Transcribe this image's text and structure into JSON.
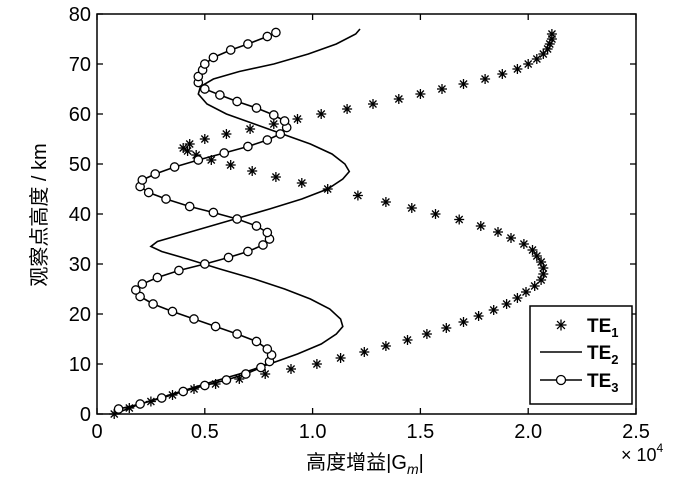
{
  "chart_data": {
    "type": "line",
    "title": "",
    "xlabel": "高度增益|G",
    "xlabel_sub": "m",
    "xlabel_end": "|",
    "ylabel": "观察点高度 / km",
    "x_exponent_label": "× 10",
    "x_exponent_power": "4",
    "xlim": [
      0,
      2.5
    ],
    "ylim": [
      0,
      80
    ],
    "x_ticks": [
      "0",
      "0.5",
      "1.0",
      "1.5",
      "2.0",
      "2.5"
    ],
    "y_ticks": [
      "0",
      "10",
      "20",
      "30",
      "40",
      "50",
      "60",
      "70",
      "80"
    ],
    "grid": false,
    "legend_position": "bottom-right",
    "colors": {
      "axis": "#000000",
      "series": "#000000"
    },
    "series": [
      {
        "name": "TE",
        "name_sub": "1",
        "marker": "asterisk",
        "points": [
          [
            0.08,
            0
          ],
          [
            0.15,
            1.2
          ],
          [
            0.25,
            2.5
          ],
          [
            0.35,
            3.8
          ],
          [
            0.45,
            5
          ],
          [
            0.55,
            6
          ],
          [
            0.66,
            7
          ],
          [
            0.78,
            8
          ],
          [
            0.9,
            9
          ],
          [
            1.02,
            10
          ],
          [
            1.13,
            11.2
          ],
          [
            1.24,
            12.4
          ],
          [
            1.34,
            13.6
          ],
          [
            1.44,
            14.8
          ],
          [
            1.53,
            16
          ],
          [
            1.62,
            17.2
          ],
          [
            1.7,
            18.4
          ],
          [
            1.77,
            19.6
          ],
          [
            1.84,
            20.8
          ],
          [
            1.9,
            22
          ],
          [
            1.95,
            23.2
          ],
          [
            1.99,
            24.4
          ],
          [
            2.03,
            25.6
          ],
          [
            2.06,
            26.8
          ],
          [
            2.07,
            28
          ],
          [
            2.07,
            29.2
          ],
          [
            2.06,
            30.4
          ],
          [
            2.04,
            31.6
          ],
          [
            2.02,
            32.8
          ],
          [
            1.98,
            34
          ],
          [
            1.92,
            35.2
          ],
          [
            1.86,
            36.4
          ],
          [
            1.78,
            37.6
          ],
          [
            1.68,
            38.9
          ],
          [
            1.57,
            40
          ],
          [
            1.46,
            41.2
          ],
          [
            1.34,
            42.4
          ],
          [
            1.21,
            43.7
          ],
          [
            1.07,
            45
          ],
          [
            0.95,
            46.2
          ],
          [
            0.83,
            47.4
          ],
          [
            0.72,
            48.6
          ],
          [
            0.62,
            49.8
          ],
          [
            0.53,
            50.8
          ],
          [
            0.46,
            51.8
          ],
          [
            0.42,
            52.6
          ],
          [
            0.4,
            53.2
          ],
          [
            0.43,
            54
          ],
          [
            0.5,
            55
          ],
          [
            0.6,
            56
          ],
          [
            0.71,
            57
          ],
          [
            0.82,
            58
          ],
          [
            0.93,
            59
          ],
          [
            1.04,
            60
          ],
          [
            1.16,
            61
          ],
          [
            1.28,
            62
          ],
          [
            1.4,
            63
          ],
          [
            1.5,
            64
          ],
          [
            1.6,
            65
          ],
          [
            1.7,
            66
          ],
          [
            1.8,
            67
          ],
          [
            1.88,
            68
          ],
          [
            1.95,
            69
          ],
          [
            2.0,
            70
          ],
          [
            2.04,
            71
          ],
          [
            2.07,
            72
          ],
          [
            2.09,
            73
          ],
          [
            2.1,
            74
          ],
          [
            2.11,
            75
          ],
          [
            2.11,
            76
          ]
        ]
      },
      {
        "name": "TE",
        "name_sub": "2",
        "marker": "none",
        "points": [
          [
            0.08,
            0
          ],
          [
            0.2,
            2
          ],
          [
            0.35,
            4
          ],
          [
            0.5,
            6
          ],
          [
            0.66,
            8
          ],
          [
            0.8,
            10
          ],
          [
            0.93,
            12
          ],
          [
            1.04,
            14
          ],
          [
            1.11,
            16
          ],
          [
            1.14,
            17.5
          ],
          [
            1.13,
            19
          ],
          [
            1.08,
            21
          ],
          [
            0.99,
            23
          ],
          [
            0.87,
            25
          ],
          [
            0.73,
            27
          ],
          [
            0.57,
            29
          ],
          [
            0.42,
            31
          ],
          [
            0.3,
            32.5
          ],
          [
            0.25,
            33.5
          ],
          [
            0.28,
            34.5
          ],
          [
            0.36,
            35.5
          ],
          [
            0.48,
            37
          ],
          [
            0.64,
            39
          ],
          [
            0.8,
            41
          ],
          [
            0.95,
            43
          ],
          [
            1.07,
            45
          ],
          [
            1.14,
            47
          ],
          [
            1.17,
            48.5
          ],
          [
            1.15,
            50
          ],
          [
            1.09,
            52
          ],
          [
            0.99,
            54
          ],
          [
            0.86,
            56
          ],
          [
            0.73,
            58
          ],
          [
            0.6,
            60
          ],
          [
            0.51,
            62
          ],
          [
            0.47,
            64
          ],
          [
            0.48,
            65.5
          ],
          [
            0.54,
            67
          ],
          [
            0.66,
            68.5
          ],
          [
            0.82,
            70
          ],
          [
            0.98,
            72
          ],
          [
            1.11,
            74
          ],
          [
            1.2,
            76
          ],
          [
            1.22,
            77
          ]
        ]
      },
      {
        "name": "TE",
        "name_sub": "3",
        "marker": "circle",
        "points": [
          [
            0.1,
            1
          ],
          [
            0.2,
            2
          ],
          [
            0.3,
            3.2
          ],
          [
            0.4,
            4.5
          ],
          [
            0.5,
            5.7
          ],
          [
            0.6,
            6.8
          ],
          [
            0.69,
            8
          ],
          [
            0.76,
            9.3
          ],
          [
            0.8,
            10.5
          ],
          [
            0.81,
            11.8
          ],
          [
            0.79,
            13
          ],
          [
            0.74,
            14.5
          ],
          [
            0.65,
            16
          ],
          [
            0.55,
            17.5
          ],
          [
            0.45,
            19
          ],
          [
            0.35,
            20.5
          ],
          [
            0.26,
            22
          ],
          [
            0.2,
            23.5
          ],
          [
            0.18,
            24.8
          ],
          [
            0.21,
            26
          ],
          [
            0.28,
            27.3
          ],
          [
            0.38,
            28.7
          ],
          [
            0.5,
            30
          ],
          [
            0.61,
            31.3
          ],
          [
            0.7,
            32.5
          ],
          [
            0.77,
            33.8
          ],
          [
            0.8,
            35
          ],
          [
            0.79,
            36.3
          ],
          [
            0.74,
            37.6
          ],
          [
            0.65,
            39
          ],
          [
            0.54,
            40.3
          ],
          [
            0.43,
            41.5
          ],
          [
            0.32,
            43
          ],
          [
            0.24,
            44.3
          ],
          [
            0.2,
            45.5
          ],
          [
            0.21,
            46.8
          ],
          [
            0.27,
            48
          ],
          [
            0.36,
            49.4
          ],
          [
            0.47,
            50.8
          ],
          [
            0.59,
            52.2
          ],
          [
            0.7,
            53.5
          ],
          [
            0.79,
            54.8
          ],
          [
            0.85,
            56
          ],
          [
            0.88,
            57.3
          ],
          [
            0.87,
            58.6
          ],
          [
            0.82,
            59.8
          ],
          [
            0.74,
            61.2
          ],
          [
            0.65,
            62.5
          ],
          [
            0.57,
            63.8
          ],
          [
            0.5,
            65
          ],
          [
            0.47,
            66.3
          ],
          [
            0.47,
            67.5
          ],
          [
            0.49,
            68.8
          ],
          [
            0.5,
            70
          ],
          [
            0.54,
            71.3
          ],
          [
            0.62,
            72.8
          ],
          [
            0.7,
            74
          ],
          [
            0.79,
            75.5
          ],
          [
            0.83,
            76.3
          ]
        ]
      }
    ]
  }
}
